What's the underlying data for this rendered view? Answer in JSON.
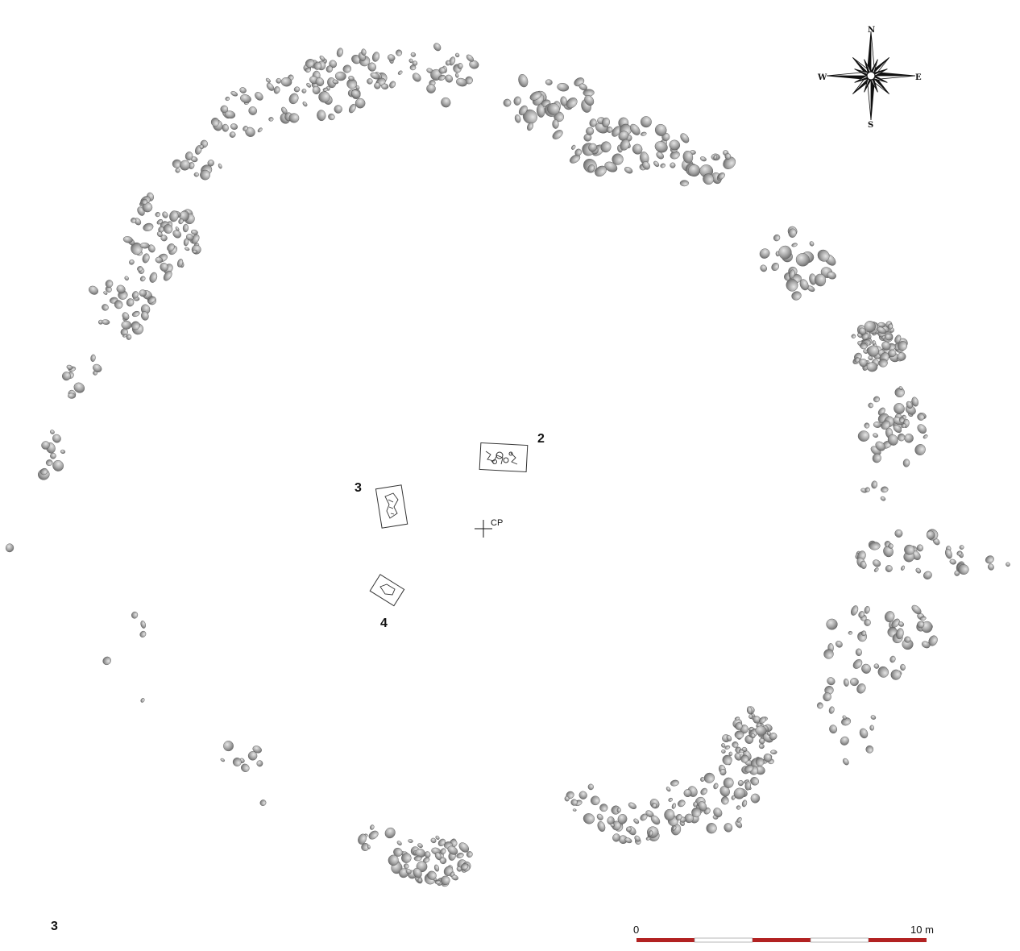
{
  "figure_number": "3",
  "features": [
    {
      "label": "2"
    },
    {
      "label": "3"
    },
    {
      "label": "4"
    }
  ],
  "center_point": {
    "label": "CP"
  },
  "compass": {
    "north": "N",
    "south": "S",
    "east": "E",
    "west": "W"
  },
  "scale_bar": {
    "start_label": "0",
    "end_label": "10 m",
    "colors": [
      "#b22222",
      "#ffffff"
    ]
  },
  "stone_color": "#9a9a9a"
}
